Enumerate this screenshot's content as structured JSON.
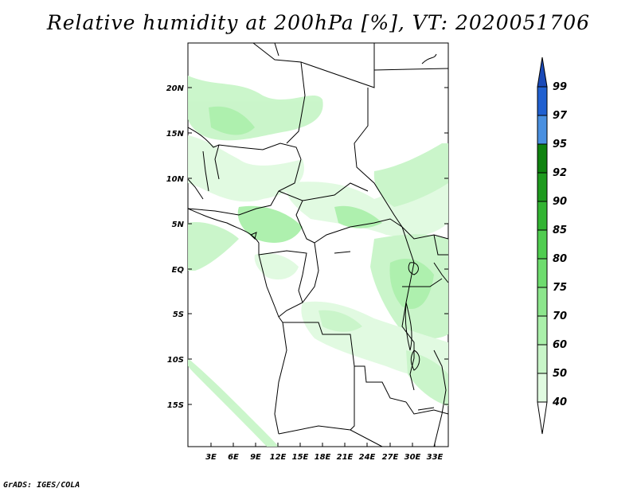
{
  "title": "Relative humidity at 200hPa [%], VT: 2020051706",
  "credit": "GrADS: IGES/COLA",
  "map": {
    "lat_labels": [
      "20N",
      "15N",
      "10N",
      "5N",
      "EQ",
      "5S",
      "10S",
      "15S"
    ],
    "lon_labels": [
      "3E",
      "6E",
      "9E",
      "12E",
      "15E",
      "18E",
      "21E",
      "24E",
      "27E",
      "30E",
      "33E"
    ],
    "field": "Relative humidity",
    "level": "200hPa",
    "units": "%",
    "valid_time": "2020051706"
  },
  "colorbar": {
    "labels": [
      "99",
      "97",
      "95",
      "92",
      "90",
      "85",
      "80",
      "75",
      "70",
      "60",
      "50",
      "40"
    ],
    "colors": {
      "c40": "#f0fff0",
      "c50": "#e0fae0",
      "c60": "#c8f5c8",
      "c70": "#aaf0aa",
      "c75": "#8ce68c",
      "c80": "#6edc6e",
      "c85": "#50cd50",
      "c90": "#32b432",
      "c92": "#1e9a1e",
      "c95": "#0f820f",
      "c97": "#4a90e0",
      "c99": "#2060d0",
      "c100": "#1a4ab8"
    }
  }
}
